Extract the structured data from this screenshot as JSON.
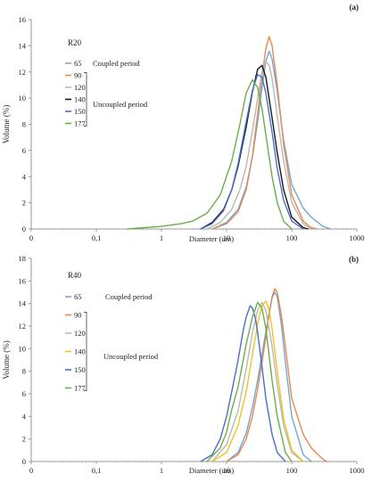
{
  "chart_data": [
    {
      "type": "line",
      "panel_label": "(a)",
      "title": "",
      "xlabel": "Diameter (um)",
      "ylabel": "Volume (%)",
      "x_scale": "log",
      "xlim": [
        0.01,
        1000
      ],
      "x_ticks": [
        0.01,
        0.1,
        1,
        10,
        100,
        1000
      ],
      "x_tick_labels": [
        "0",
        "0,1",
        "1",
        "10",
        "100",
        "1000"
      ],
      "ylim": [
        0,
        16
      ],
      "y_ticks": [
        0,
        2,
        4,
        6,
        8,
        10,
        12,
        14,
        16
      ],
      "grid": false,
      "legend": {
        "group": "R20",
        "coupled_label": "Coupled period",
        "uncoupled_label": "Uncoupled period"
      },
      "series": [
        {
          "name": "65",
          "color": "#6fa8dc",
          "x": [
            6,
            10,
            15,
            20,
            25,
            30,
            35,
            40,
            45,
            50,
            60,
            75,
            100,
            150,
            200,
            300,
            400
          ],
          "y": [
            0,
            0.5,
            1.5,
            3.2,
            5.5,
            8.2,
            10.8,
            12.8,
            13.6,
            13.0,
            10.5,
            6.8,
            3.4,
            1.6,
            0.9,
            0.2,
            0
          ]
        },
        {
          "name": "90",
          "color": "#e8894f",
          "x": [
            6,
            10,
            15,
            20,
            25,
            30,
            35,
            40,
            45,
            50,
            60,
            75,
            100,
            150,
            200,
            250
          ],
          "y": [
            0,
            0.4,
            1.3,
            3.0,
            5.6,
            8.8,
            11.6,
            13.8,
            14.7,
            14.0,
            11.0,
            6.5,
            2.6,
            0.6,
            0.1,
            0
          ]
        },
        {
          "name": "120",
          "color": "#b8b8b8",
          "x": [
            5,
            8,
            12,
            16,
            20,
            25,
            30,
            35,
            40,
            45,
            50,
            60,
            75,
            100,
            150,
            200
          ],
          "y": [
            0,
            0.5,
            1.5,
            3.0,
            4.8,
            7.5,
            10.0,
            12.0,
            12.8,
            12.5,
            11.5,
            8.6,
            5.2,
            2.0,
            0.4,
            0
          ]
        },
        {
          "name": "140",
          "color": "#1a1a1a",
          "x": [
            4,
            6,
            9,
            12,
            15,
            20,
            25,
            30,
            35,
            40,
            50,
            60,
            75,
            100,
            150,
            180
          ],
          "y": [
            0,
            0.5,
            1.5,
            3.0,
            4.8,
            7.8,
            10.5,
            12.2,
            12.5,
            11.6,
            8.5,
            5.8,
            3.0,
            0.9,
            0.1,
            0
          ]
        },
        {
          "name": "150",
          "color": "#4a6fc9",
          "x": [
            4,
            6,
            9,
            12,
            15,
            20,
            25,
            30,
            35,
            40,
            50,
            60,
            75,
            100,
            150
          ],
          "y": [
            0,
            0.4,
            1.4,
            3.0,
            5.0,
            8.2,
            10.6,
            11.8,
            11.6,
            10.4,
            7.4,
            4.6,
            2.2,
            0.6,
            0
          ]
        },
        {
          "name": "177",
          "color": "#6cae4a",
          "x": [
            0.3,
            1,
            2,
            3,
            5,
            8,
            12,
            16,
            20,
            25,
            30,
            35,
            40,
            50,
            60,
            75,
            100
          ],
          "y": [
            0,
            0.2,
            0.4,
            0.6,
            1.2,
            2.6,
            5.2,
            8.0,
            10.4,
            11.4,
            10.8,
            9.2,
            7.2,
            4.0,
            2.0,
            0.6,
            0
          ]
        }
      ]
    },
    {
      "type": "line",
      "panel_label": "(b)",
      "title": "",
      "xlabel": "Diameter (um)",
      "ylabel": "Volume (%)",
      "x_scale": "log",
      "xlim": [
        0.01,
        1000
      ],
      "x_ticks": [
        0.01,
        0.1,
        1,
        10,
        100,
        1000
      ],
      "x_tick_labels": [
        "0",
        "0,1",
        "1",
        "10",
        "100",
        "1000"
      ],
      "ylim": [
        0,
        18
      ],
      "y_ticks": [
        0,
        2,
        4,
        6,
        8,
        10,
        12,
        14,
        16,
        18
      ],
      "grid": false,
      "legend": {
        "group": "R40",
        "coupled_label": "Coupled period",
        "uncoupled_label": "Uncoupled period"
      },
      "series": [
        {
          "name": "65",
          "color": "#6fa8dc",
          "x": [
            10,
            15,
            20,
            25,
            30,
            35,
            40,
            45,
            50,
            55,
            60,
            70,
            80,
            100,
            150,
            200
          ],
          "y": [
            0,
            0.8,
            2.5,
            4.8,
            7.2,
            9.5,
            11.5,
            13.2,
            14.5,
            15.0,
            14.6,
            12.0,
            8.8,
            4.0,
            0.6,
            0
          ]
        },
        {
          "name": "90",
          "color": "#e8894f",
          "x": [
            10,
            15,
            20,
            25,
            30,
            35,
            40,
            45,
            50,
            55,
            60,
            70,
            80,
            100,
            150,
            200,
            300,
            350
          ],
          "y": [
            0,
            0.6,
            2.0,
            4.0,
            6.4,
            8.8,
            11.0,
            13.0,
            14.6,
            15.3,
            15.0,
            12.8,
            10.2,
            5.6,
            2.4,
            1.2,
            0.2,
            0
          ]
        },
        {
          "name": "120",
          "color": "#b8b8b8",
          "x": [
            6,
            10,
            15,
            20,
            25,
            30,
            35,
            40,
            50,
            60,
            75,
            100,
            150
          ],
          "y": [
            0,
            1.5,
            4.5,
            8.2,
            11.4,
            13.4,
            14.1,
            13.4,
            10.2,
            6.8,
            3.2,
            0.8,
            0
          ]
        },
        {
          "name": "140",
          "color": "#f0c419",
          "x": [
            6,
            10,
            15,
            20,
            25,
            30,
            35,
            40,
            45,
            50,
            60,
            75,
            100,
            150
          ],
          "y": [
            0,
            0.8,
            3.2,
            6.2,
            9.5,
            12.2,
            13.8,
            14.2,
            13.4,
            11.8,
            8.0,
            3.8,
            1.0,
            0
          ]
        },
        {
          "name": "150",
          "color": "#4a6fc9",
          "x": [
            4,
            6,
            8,
            10,
            12,
            15,
            18,
            20,
            23,
            25,
            28,
            30,
            35,
            40,
            50,
            60,
            80
          ],
          "y": [
            0,
            0.6,
            2.0,
            4.0,
            6.2,
            9.0,
            11.6,
            12.8,
            13.8,
            13.6,
            12.6,
            11.4,
            8.4,
            5.6,
            2.4,
            0.8,
            0
          ]
        },
        {
          "name": "177",
          "color": "#6cae4a",
          "x": [
            5,
            8,
            10,
            12,
            15,
            18,
            20,
            25,
            30,
            35,
            40,
            50,
            60,
            80,
            100
          ],
          "y": [
            0,
            1.2,
            2.6,
            4.6,
            6.6,
            9.0,
            10.4,
            12.8,
            14.1,
            13.6,
            11.8,
            7.2,
            4.0,
            0.8,
            0
          ]
        }
      ]
    }
  ]
}
